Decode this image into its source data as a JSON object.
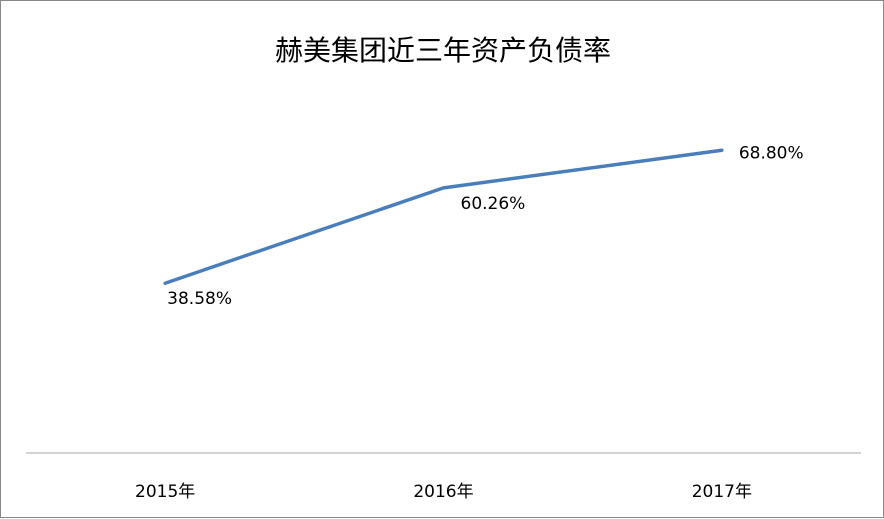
{
  "chart_data": {
    "type": "line",
    "title": "赫美集团近三年资产负债率",
    "categories": [
      "2015年",
      "2016年",
      "2017年"
    ],
    "series": [
      {
        "values": [
          38.58,
          60.26,
          68.8
        ],
        "labels": [
          "38.58%",
          "60.26%",
          "68.80%"
        ],
        "color": "#4a7ebb"
      }
    ],
    "ylim": [
      0,
      80
    ],
    "grid": false,
    "legend": "none"
  }
}
